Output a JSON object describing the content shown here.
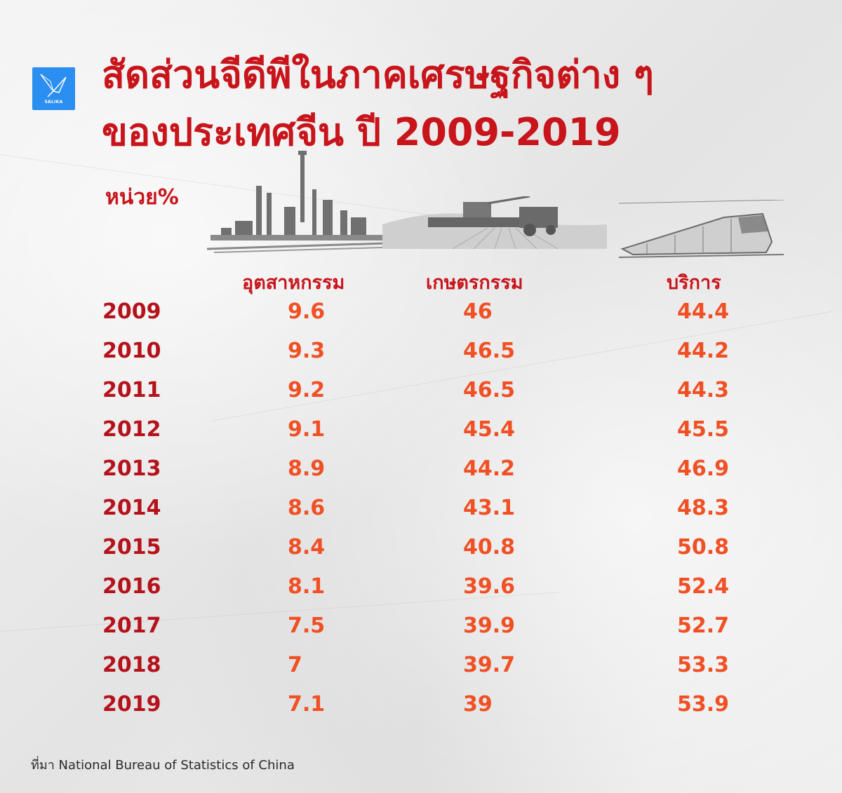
{
  "brand": {
    "logo_text": "SALIKA"
  },
  "title": {
    "line1": "สัดส่วนจีดีพีในภาคเศรษฐกิจต่าง ๆ",
    "line2": "ของประเทศจีน ปี  2009-2019"
  },
  "unit_label": "หน่วย%",
  "icons": [
    "factory-illustration",
    "farm-harvester-illustration",
    "train-illustration"
  ],
  "colors": {
    "title": "#c8141b",
    "year": "#b5121b",
    "value": "#f05024",
    "logo": "#2a8ff0"
  },
  "chart_data": {
    "type": "table",
    "columns": [
      "อุตสาหกรรม",
      "เกษตรกรรม",
      "บริการ"
    ],
    "rows": [
      {
        "year": "2009",
        "values": [
          "9.6",
          "46",
          "44.4"
        ]
      },
      {
        "year": "2010",
        "values": [
          "9.3",
          "46.5",
          "44.2"
        ]
      },
      {
        "year": "2011",
        "values": [
          "9.2",
          "46.5",
          "44.3"
        ]
      },
      {
        "year": "2012",
        "values": [
          "9.1",
          "45.4",
          "45.5"
        ]
      },
      {
        "year": "2013",
        "values": [
          "8.9",
          "44.2",
          "46.9"
        ]
      },
      {
        "year": "2014",
        "values": [
          "8.6",
          "43.1",
          "48.3"
        ]
      },
      {
        "year": "2015",
        "values": [
          "8.4",
          "40.8",
          "50.8"
        ]
      },
      {
        "year": "2016",
        "values": [
          "8.1",
          "39.6",
          "52.4"
        ]
      },
      {
        "year": "2017",
        "values": [
          "7.5",
          "39.9",
          "52.7"
        ]
      },
      {
        "year": "2018",
        "values": [
          "7",
          "39.7",
          "53.3"
        ]
      },
      {
        "year": "2019",
        "values": [
          "7.1",
          "39",
          "53.9"
        ]
      }
    ]
  },
  "source": "ที่มา National Bureau of Statistics of China"
}
